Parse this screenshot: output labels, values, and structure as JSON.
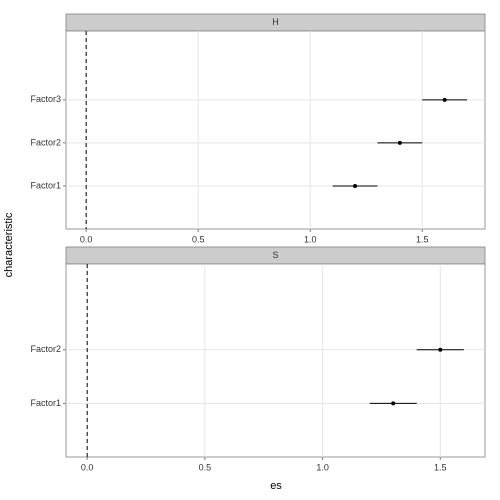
{
  "x_label": "es",
  "y_label": "characteristic",
  "chart_data": [
    {
      "type": "forest",
      "strip": "H",
      "categories": [
        "Factor1",
        "Factor2",
        "Factor3"
      ],
      "values": [
        1.2,
        1.4,
        1.6
      ],
      "errors": [
        0.1,
        0.1,
        0.1
      ],
      "xlim": [
        -0.09,
        1.78
      ],
      "xticks": [
        {
          "value": 0,
          "label": "0.0"
        },
        0.5,
        {
          "value": 1,
          "label": "1.0"
        },
        1.5
      ],
      "vline": 0,
      "grid": true,
      "color": "#000000"
    },
    {
      "type": "forest",
      "strip": "S",
      "categories": [
        "Factor1",
        "Factor2"
      ],
      "values": [
        1.3,
        1.5
      ],
      "errors": [
        0.1,
        0.1
      ],
      "xlim": [
        -0.09,
        1.69
      ],
      "xticks": [
        {
          "value": 0,
          "label": "0.0"
        },
        0.5,
        {
          "value": 1,
          "label": "1.0"
        },
        1.5
      ],
      "vline": 0,
      "grid": true,
      "color": "#000000"
    }
  ]
}
